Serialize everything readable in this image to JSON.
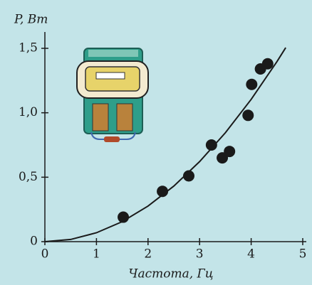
{
  "chart_data": {
    "type": "scatter",
    "y_label": "P, Вт",
    "x_label": "Частота, Гц",
    "xlim": [
      0,
      5
    ],
    "xticks": [
      0,
      1,
      2,
      3,
      4,
      5
    ],
    "ylim": [
      0,
      1.5
    ],
    "yticks": [
      0,
      {
        "value": 0.5,
        "label": "0,5"
      },
      {
        "value": 1.0,
        "label": "1,0"
      },
      {
        "value": 1.5,
        "label": "1,5"
      }
    ],
    "points": {
      "color": "#1a1a1a",
      "x": [
        1.52,
        2.28,
        2.79,
        3.23,
        3.44,
        3.58,
        3.94,
        4.01,
        4.18,
        4.32
      ],
      "values": [
        0.19,
        0.39,
        0.51,
        0.75,
        0.65,
        0.7,
        0.98,
        1.22,
        1.34,
        1.38
      ]
    },
    "curve": {
      "color": "#1a1a1a",
      "x": [
        0,
        0.5,
        1,
        1.5,
        2,
        2.5,
        3,
        3.5,
        4,
        4.5,
        4.67
      ],
      "values": [
        0,
        0.017,
        0.069,
        0.155,
        0.276,
        0.431,
        0.621,
        0.845,
        1.104,
        1.397,
        1.505
      ]
    }
  }
}
